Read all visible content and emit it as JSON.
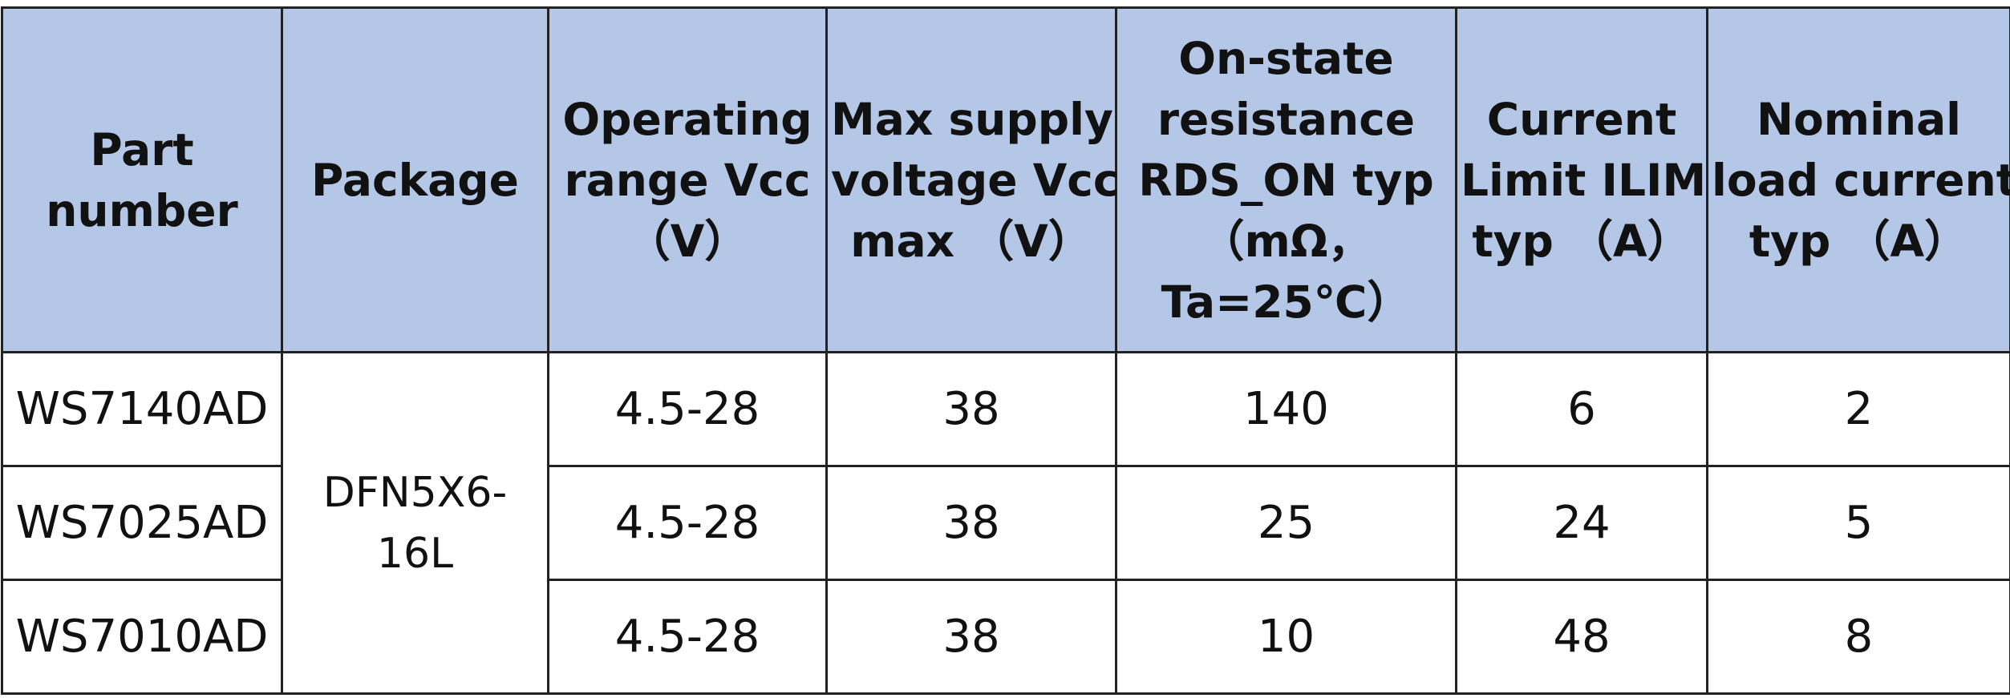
{
  "table": {
    "headers": [
      [
        "Part",
        "number"
      ],
      [
        "Package"
      ],
      [
        "Operating",
        "range Vcc",
        "（V）"
      ],
      [
        "Max supply",
        "voltage Vcc",
        "max （V）"
      ],
      [
        "On-state",
        "resistance",
        "RDS_ON typ",
        "（mΩ，",
        "Ta=25℃）"
      ],
      [
        "Current",
        "Limit ILIM",
        "typ （A）"
      ],
      [
        "Nominal",
        "load current",
        "typ （A）"
      ]
    ],
    "package": [
      "DFN5X6-",
      "16L"
    ],
    "rows": [
      {
        "part": "WS7140AD",
        "vcc_range": "4.5-28",
        "vcc_max": "38",
        "rds_on": "140",
        "ilim": "6",
        "load_current": "2"
      },
      {
        "part": "WS7025AD",
        "vcc_range": "4.5-28",
        "vcc_max": "38",
        "rds_on": "25",
        "ilim": "24",
        "load_current": "5"
      },
      {
        "part": "WS7010AD",
        "vcc_range": "4.5-28",
        "vcc_max": "38",
        "rds_on": "10",
        "ilim": "48",
        "load_current": "8"
      }
    ],
    "colors": {
      "header_bg": "#b4c7e7",
      "border": "#222222",
      "text": "#111111"
    }
  }
}
